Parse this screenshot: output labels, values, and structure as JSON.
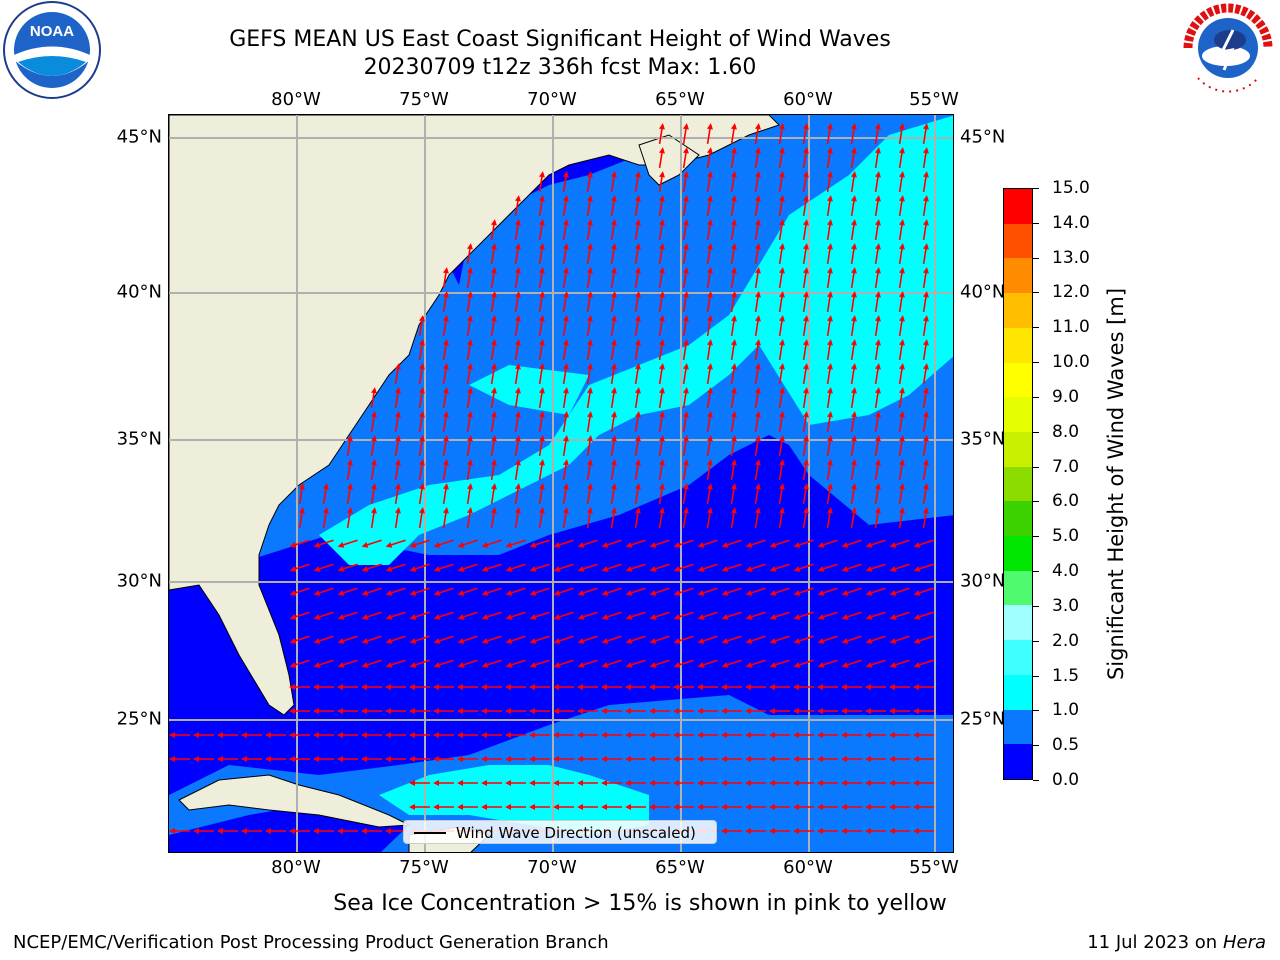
{
  "title": {
    "line1": "GEFS MEAN US East Coast Significant Height of Wind Waves",
    "line2": "20230709 t12z 336h fcst   Max: 1.60"
  },
  "axes": {
    "lon_ticks": [
      "80°W",
      "75°W",
      "70°W",
      "65°W",
      "60°W",
      "55°W"
    ],
    "lat_ticks": [
      "45°N",
      "40°N",
      "35°N",
      "30°N",
      "25°N"
    ]
  },
  "legend": {
    "label": "Wind Wave Direction (unscaled)"
  },
  "colorbar": {
    "title": "Significant Height of Wind Waves [m]",
    "ticks": [
      "0.0",
      "0.5",
      "1.0",
      "1.5",
      "2.0",
      "3.0",
      "4.0",
      "5.0",
      "6.0",
      "7.0",
      "8.0",
      "9.0",
      "10.0",
      "11.0",
      "12.0",
      "13.0",
      "14.0",
      "15.0"
    ],
    "colors": [
      "#0000ff",
      "#0a78ff",
      "#00ffff",
      "#40ffff",
      "#a0ffff",
      "#50fa6e",
      "#00e600",
      "#3cd200",
      "#8cdc00",
      "#c8f000",
      "#e6ff00",
      "#ffff00",
      "#ffe600",
      "#ffbe00",
      "#ff8c00",
      "#ff5000",
      "#ff0000"
    ]
  },
  "sea_ice_note": "Sea Ice Concentration > 15% is shown in pink to yellow",
  "footer": {
    "left": "NCEP/EMC/Verification Post Processing Product Generation Branch",
    "right_prefix": "11 Jul 2023 on ",
    "right_machine": "Hera"
  },
  "logos": {
    "left": {
      "icon": "noaa-logo",
      "text": "NOAA"
    },
    "right": {
      "icon": "national-weather-service-logo",
      "text": "NATIONAL WEATHER SERVICE"
    }
  },
  "colors": {
    "land": "#efeedb",
    "grid": "#b0b0b0",
    "arrow": "#ff0000"
  }
}
